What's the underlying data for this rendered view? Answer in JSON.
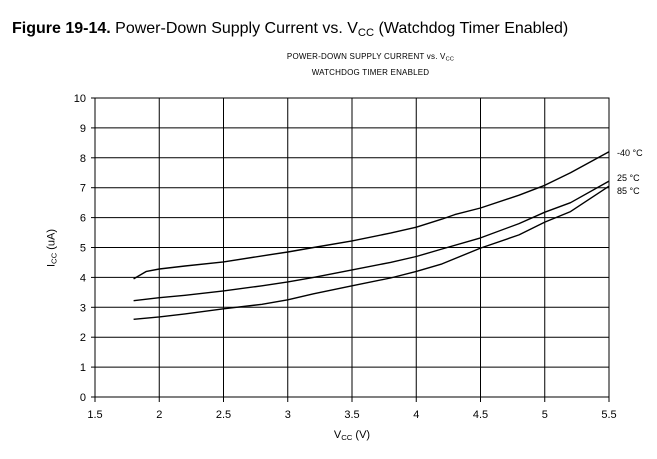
{
  "figure": {
    "number": "Figure 19-14.",
    "title_pre": "Power-Down Supply Current vs. V",
    "title_sub": "CC",
    "title_post": " (Watchdog Timer Enabled)"
  },
  "chart_data": {
    "type": "line",
    "title_line1_pre": "POWER-DOWN SUPPLY CURRENT vs. V",
    "title_line1_sub": "CC",
    "title_line2": "WATCHDOG TIMER ENABLED",
    "ylabel_main": "I",
    "ylabel_sub": "CC",
    "ylabel_unit": " (uA)",
    "xlabel_main": "V",
    "xlabel_sub": "CC",
    "xlabel_unit": " (V)",
    "xlim": [
      1.5,
      5.5
    ],
    "ylim": [
      0,
      10
    ],
    "xticks": [
      "1.5",
      "2",
      "2.5",
      "3",
      "3.5",
      "4",
      "4.5",
      "5",
      "5.5"
    ],
    "yticks": [
      "0",
      "1",
      "2",
      "3",
      "4",
      "5",
      "6",
      "7",
      "8",
      "9",
      "10"
    ],
    "grid": true,
    "series": [
      {
        "name": "-40 °C",
        "x": [
          1.8,
          1.9,
          2.0,
          2.2,
          2.5,
          2.8,
          3.0,
          3.2,
          3.5,
          3.8,
          4.0,
          4.2,
          4.3,
          4.5,
          4.8,
          5.0,
          5.2,
          5.5
        ],
        "y": [
          3.95,
          4.2,
          4.28,
          4.38,
          4.52,
          4.72,
          4.85,
          5.0,
          5.22,
          5.48,
          5.68,
          5.95,
          6.1,
          6.32,
          6.75,
          7.08,
          7.5,
          8.2
        ]
      },
      {
        "name": "25 °C",
        "x": [
          1.8,
          2.0,
          2.2,
          2.5,
          2.8,
          3.0,
          3.2,
          3.5,
          3.8,
          4.0,
          4.2,
          4.5,
          4.8,
          5.0,
          5.2,
          5.5
        ],
        "y": [
          3.22,
          3.32,
          3.4,
          3.55,
          3.72,
          3.85,
          4.0,
          4.25,
          4.5,
          4.7,
          4.95,
          5.32,
          5.8,
          6.18,
          6.5,
          7.22
        ]
      },
      {
        "name": "85 °C",
        "x": [
          1.8,
          2.0,
          2.2,
          2.5,
          2.8,
          3.0,
          3.2,
          3.5,
          3.8,
          4.0,
          4.2,
          4.5,
          4.8,
          5.0,
          5.2,
          5.5
        ],
        "y": [
          2.6,
          2.68,
          2.78,
          2.95,
          3.1,
          3.25,
          3.45,
          3.72,
          3.98,
          4.2,
          4.45,
          4.98,
          5.42,
          5.85,
          6.2,
          7.05
        ]
      }
    ],
    "colors": {
      "line": "#000000",
      "grid": "#000000"
    }
  }
}
